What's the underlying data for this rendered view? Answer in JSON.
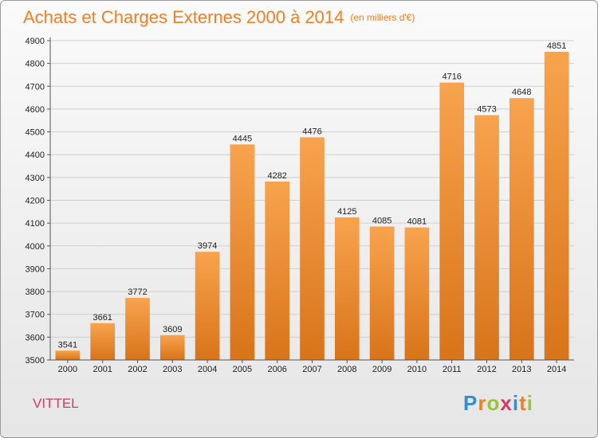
{
  "title": "Achats et Charges Externes 2000 à 2014",
  "unit": "(en milliers d'€)",
  "city": "VITTEL",
  "brand": "Proxiti",
  "colors": {
    "bar_top": "#f8a34e",
    "bar_bottom": "#d8741a",
    "title": "#ee7f23",
    "city": "#d23a6a",
    "grid": "#cfcfcf"
  },
  "chart_data": {
    "type": "bar",
    "categories": [
      "2000",
      "2001",
      "2002",
      "2003",
      "2004",
      "2005",
      "2006",
      "2007",
      "2008",
      "2009",
      "2010",
      "2011",
      "2012",
      "2013",
      "2014"
    ],
    "values": [
      3541,
      3661,
      3772,
      3609,
      3974,
      4445,
      4282,
      4476,
      4125,
      4085,
      4081,
      4716,
      4573,
      4648,
      4851
    ],
    "ylim": [
      3500,
      4900
    ],
    "yticks": [
      3500,
      3600,
      3700,
      3800,
      3900,
      4000,
      4100,
      4200,
      4300,
      4400,
      4500,
      4600,
      4700,
      4800,
      4900
    ],
    "grid": true
  }
}
